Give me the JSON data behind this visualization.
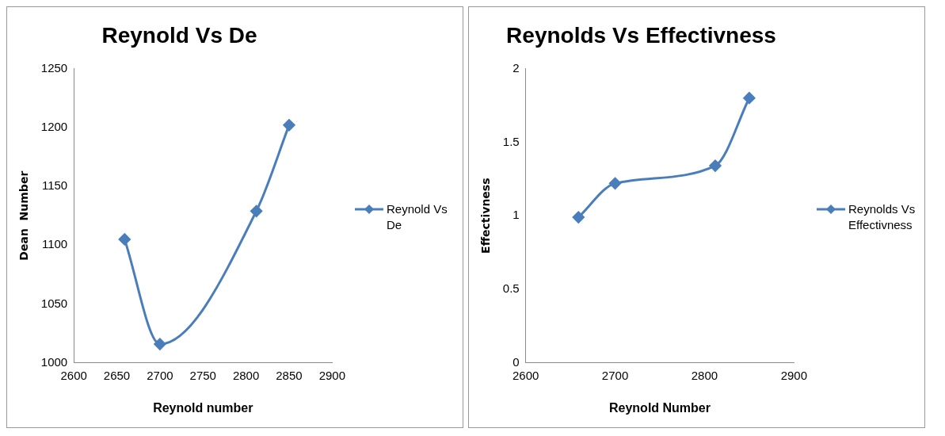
{
  "chart_data": [
    {
      "type": "line",
      "title": "Reynold Vs De",
      "xlabel": "Reynold number",
      "ylabel": "Dean  Number",
      "x": [
        2659,
        2700,
        2812,
        2850
      ],
      "series": [
        {
          "name": "Reynold Vs De",
          "color": "#4a7ebb",
          "values": [
            1105,
            1016,
            1129,
            1202
          ]
        }
      ],
      "xlim": [
        2600,
        2900
      ],
      "xticks": [
        2600,
        2650,
        2700,
        2750,
        2800,
        2850,
        2900
      ],
      "ylim": [
        1000,
        1250
      ],
      "yticks": [
        1000,
        1050,
        1100,
        1150,
        1200,
        1250
      ],
      "grid": false,
      "legend": "right",
      "marker": "diamond",
      "line_style": "solid"
    },
    {
      "type": "line",
      "title": "Reynolds Vs Effectivness",
      "xlabel": "Reynold Number",
      "ylabel": "Effectivness",
      "x": [
        2659,
        2700,
        2812,
        2850
      ],
      "series": [
        {
          "name": "Reynolds Vs Effectivness",
          "color": "#4a7ebb",
          "values": [
            0.99,
            1.22,
            1.34,
            1.8
          ]
        }
      ],
      "xlim": [
        2600,
        2900
      ],
      "xticks": [
        2600,
        2700,
        2800,
        2900
      ],
      "ylim": [
        0,
        2
      ],
      "yticks": [
        0,
        0.5,
        1,
        1.5,
        2
      ],
      "grid": false,
      "legend": "right",
      "marker": "diamond",
      "line_style": "solid"
    }
  ]
}
